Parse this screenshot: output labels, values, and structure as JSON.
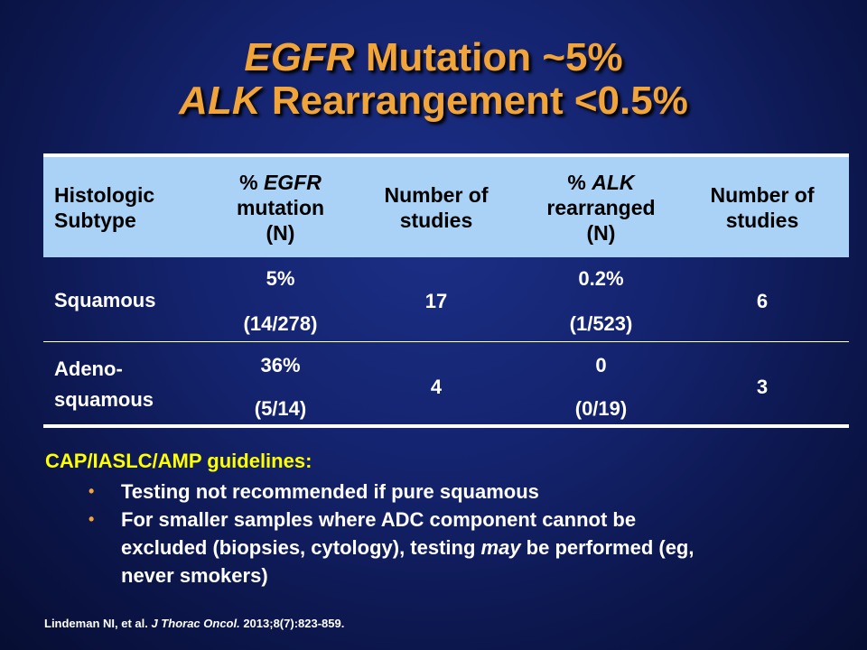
{
  "title": {
    "line1_gene": "EGFR",
    "line1_rest": " Mutation ~5%",
    "line2_gene": "ALK",
    "line2_rest": " Rearrangement <0.5%"
  },
  "table": {
    "headers": {
      "col1_a": "Histologic",
      "col1_b": "Subtype",
      "col2_pre": "% ",
      "col2_gene": "EGFR",
      "col2_b": "mutation",
      "col2_c": "(N)",
      "col3_a": "Number of",
      "col3_b": "studies",
      "col4_pre": "% ",
      "col4_gene": "ALK",
      "col4_b": "rearranged",
      "col4_c": "(N)",
      "col5_a": "Number of",
      "col5_b": "studies"
    },
    "rows": [
      {
        "subtype_a": "Squamous",
        "subtype_b": "",
        "egfr_pct": "5%",
        "egfr_n": "(14/278)",
        "egfr_studies": "17",
        "alk_pct": "0.2%",
        "alk_n": "(1/523)",
        "alk_studies": "6"
      },
      {
        "subtype_a": "Adeno-",
        "subtype_b": "squamous",
        "egfr_pct": "36%",
        "egfr_n": "(5/14)",
        "egfr_studies": "4",
        "alk_pct": "0",
        "alk_n": "(0/19)",
        "alk_studies": "3"
      }
    ]
  },
  "guidelines": {
    "heading": "CAP/IASLC/AMP guidelines:",
    "bullet_symbol": "•",
    "bullet1": "Testing not recommended if pure squamous",
    "bullet2_line1": "For smaller samples where ADC component cannot be",
    "bullet2_line2_pre": "excluded (biopsies, cytology), testing ",
    "bullet2_line2_em": "may",
    "bullet2_line2_post": " be performed (eg,",
    "bullet2_line3": "never smokers)"
  },
  "reference": {
    "authors": "Lindeman NI, et al. ",
    "journal": "J Thorac Oncol.",
    "citation": " 2013;8(7):823-859."
  },
  "colors": {
    "title": "#f0a43a",
    "header_bg": "#a9d2f6",
    "guideline_heading": "#ffff00",
    "bullet": "#f0a43a"
  }
}
